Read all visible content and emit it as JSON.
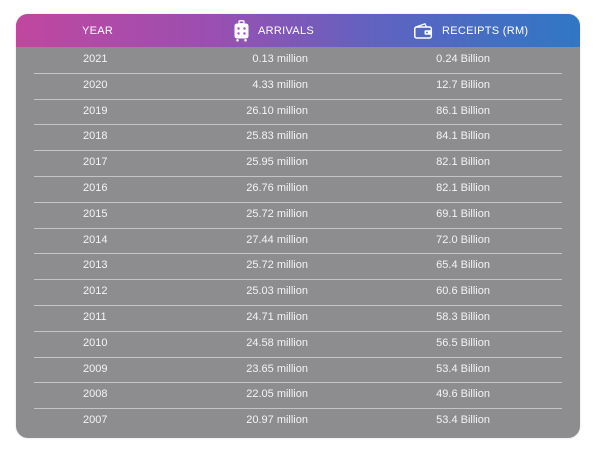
{
  "table": {
    "headers": {
      "year": "YEAR",
      "arrivals": "ARRIVALS",
      "receipts": "RECEIPTS (RM)"
    },
    "icons": {
      "arrivals": "suitcase-icon",
      "receipts": "wallet-icon"
    },
    "colors": {
      "header_gradient": [
        "#c0479f",
        "#9a4fb1",
        "#5e63c1",
        "#2f77c4"
      ],
      "body": "#8d8d8f",
      "text": "#f4f4f4",
      "divider": "#c4c4c6"
    },
    "rows": [
      {
        "year": "2021",
        "arrivals": "0.13 million",
        "receipts": "0.24 Billion"
      },
      {
        "year": "2020",
        "arrivals": "4.33 million",
        "receipts": "12.7 Billion"
      },
      {
        "year": "2019",
        "arrivals": "26.10 million",
        "receipts": "86.1 Billion"
      },
      {
        "year": "2018",
        "arrivals": "25.83 million",
        "receipts": "84.1 Billion"
      },
      {
        "year": "2017",
        "arrivals": "25.95 million",
        "receipts": "82.1 Billion"
      },
      {
        "year": "2016",
        "arrivals": "26.76 million",
        "receipts": "82.1 Billion"
      },
      {
        "year": "2015",
        "arrivals": "25.72 million",
        "receipts": "69.1 Billion"
      },
      {
        "year": "2014",
        "arrivals": "27.44 million",
        "receipts": "72.0 Billion"
      },
      {
        "year": "2013",
        "arrivals": "25.72 million",
        "receipts": "65.4 Billion"
      },
      {
        "year": "2012",
        "arrivals": "25.03 million",
        "receipts": "60.6 Billion"
      },
      {
        "year": "2011",
        "arrivals": "24.71 million",
        "receipts": "58.3 Billion"
      },
      {
        "year": "2010",
        "arrivals": "24.58 million",
        "receipts": "56.5 Billion"
      },
      {
        "year": "2009",
        "arrivals": "23.65 million",
        "receipts": "53.4 Billion"
      },
      {
        "year": "2008",
        "arrivals": "22.05 million",
        "receipts": "49.6 Billion"
      },
      {
        "year": "2007",
        "arrivals": "20.97 million",
        "receipts": "53.4 Billion"
      }
    ]
  }
}
